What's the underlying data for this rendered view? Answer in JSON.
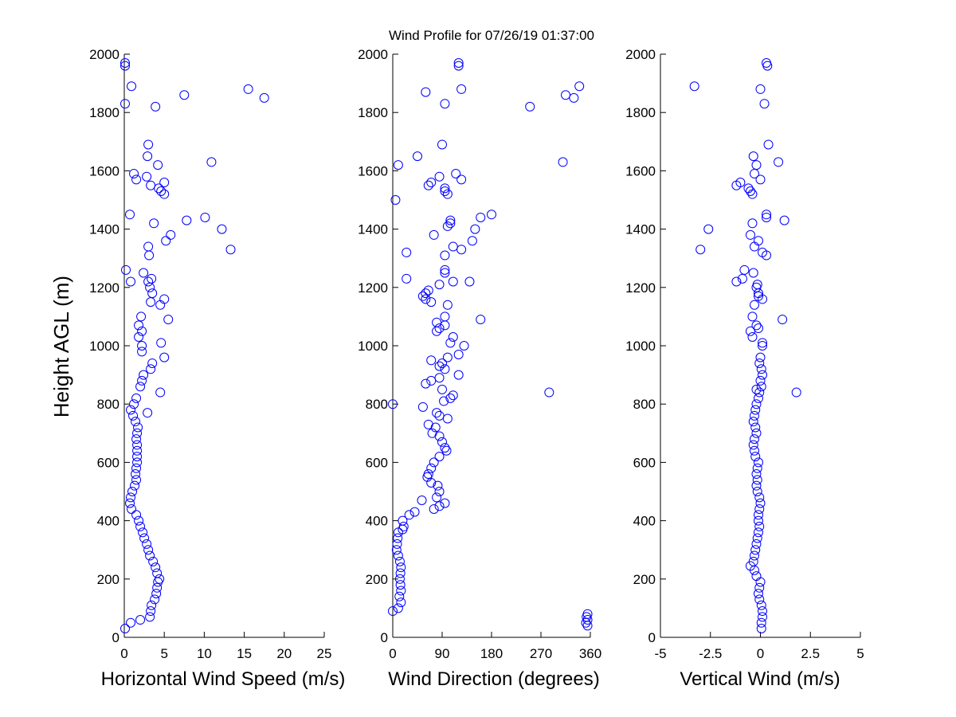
{
  "title": "Wind Profile for  07/26/19 01:37:00",
  "colors": {
    "marker": "#0000ff",
    "axis": "#000000",
    "background": "#ffffff"
  },
  "chart_data": [
    {
      "type": "scatter",
      "xlabel": "Horizontal Wind Speed (m/s)",
      "ylabel": "Height AGL (m)",
      "xlim": [
        0,
        25
      ],
      "ylim": [
        0,
        2000
      ],
      "xticks": [
        0,
        5,
        10,
        15,
        20,
        25
      ],
      "xtick_labels": [
        "0",
        "5",
        "10",
        "15",
        "20",
        "25"
      ],
      "yticks": [
        0,
        200,
        400,
        600,
        800,
        1000,
        1200,
        1400,
        1600,
        1800,
        2000
      ],
      "ytick_labels": [
        "0",
        "200",
        "400",
        "600",
        "800",
        "1000",
        "1200",
        "1400",
        "1600",
        "1800",
        "2000"
      ],
      "grid": false,
      "marker": "open-circle",
      "points": [
        [
          0.1,
          30
        ],
        [
          0.8,
          50
        ],
        [
          2.0,
          60
        ],
        [
          3.2,
          70
        ],
        [
          3.3,
          90
        ],
        [
          3.4,
          110
        ],
        [
          3.8,
          130
        ],
        [
          4.0,
          150
        ],
        [
          4.1,
          170
        ],
        [
          4.2,
          190
        ],
        [
          4.4,
          200
        ],
        [
          4.1,
          220
        ],
        [
          3.9,
          240
        ],
        [
          3.6,
          260
        ],
        [
          3.2,
          280
        ],
        [
          3.0,
          300
        ],
        [
          2.8,
          320
        ],
        [
          2.5,
          340
        ],
        [
          2.3,
          360
        ],
        [
          2.0,
          380
        ],
        [
          1.8,
          400
        ],
        [
          1.5,
          420
        ],
        [
          0.9,
          440
        ],
        [
          0.7,
          460
        ],
        [
          0.8,
          480
        ],
        [
          1.0,
          500
        ],
        [
          1.3,
          520
        ],
        [
          1.5,
          540
        ],
        [
          1.4,
          560
        ],
        [
          1.5,
          580
        ],
        [
          1.6,
          600
        ],
        [
          1.6,
          620
        ],
        [
          1.6,
          640
        ],
        [
          1.6,
          660
        ],
        [
          1.5,
          680
        ],
        [
          1.6,
          700
        ],
        [
          1.7,
          720
        ],
        [
          1.4,
          740
        ],
        [
          1.1,
          760
        ],
        [
          2.9,
          770
        ],
        [
          0.8,
          780
        ],
        [
          1.2,
          800
        ],
        [
          1.5,
          820
        ],
        [
          4.5,
          840
        ],
        [
          2.0,
          860
        ],
        [
          2.2,
          880
        ],
        [
          2.4,
          900
        ],
        [
          3.3,
          920
        ],
        [
          3.5,
          940
        ],
        [
          5.0,
          960
        ],
        [
          2.2,
          980
        ],
        [
          2.2,
          1000
        ],
        [
          4.6,
          1010
        ],
        [
          1.8,
          1030
        ],
        [
          2.2,
          1050
        ],
        [
          1.8,
          1070
        ],
        [
          5.5,
          1090
        ],
        [
          2.1,
          1100
        ],
        [
          4.5,
          1140
        ],
        [
          3.3,
          1150
        ],
        [
          5.0,
          1160
        ],
        [
          3.5,
          1180
        ],
        [
          3.2,
          1200
        ],
        [
          3.0,
          1220
        ],
        [
          0.8,
          1220
        ],
        [
          3.4,
          1230
        ],
        [
          2.4,
          1250
        ],
        [
          0.2,
          1260
        ],
        [
          3.1,
          1310
        ],
        [
          13.3,
          1330
        ],
        [
          3.0,
          1340
        ],
        [
          5.2,
          1360
        ],
        [
          5.8,
          1380
        ],
        [
          12.2,
          1400
        ],
        [
          3.7,
          1420
        ],
        [
          7.8,
          1430
        ],
        [
          10.1,
          1440
        ],
        [
          0.7,
          1450
        ],
        [
          5.0,
          1520
        ],
        [
          4.6,
          1530
        ],
        [
          4.3,
          1540
        ],
        [
          3.3,
          1550
        ],
        [
          5.0,
          1560
        ],
        [
          1.5,
          1570
        ],
        [
          2.8,
          1580
        ],
        [
          1.2,
          1590
        ],
        [
          4.2,
          1620
        ],
        [
          10.9,
          1630
        ],
        [
          2.9,
          1650
        ],
        [
          3.0,
          1690
        ],
        [
          3.9,
          1820
        ],
        [
          0.1,
          1830
        ],
        [
          17.5,
          1850
        ],
        [
          7.5,
          1860
        ],
        [
          15.5,
          1880
        ],
        [
          0.9,
          1890
        ],
        [
          0.1,
          1960
        ],
        [
          0.1,
          1970
        ]
      ]
    },
    {
      "type": "scatter",
      "xlabel": "Wind Direction (degrees)",
      "ylabel": "",
      "xlim": [
        0,
        360
      ],
      "ylim": [
        0,
        2000
      ],
      "xticks": [
        0,
        90,
        180,
        270,
        360
      ],
      "xtick_labels": [
        "0",
        "90",
        "180",
        "270",
        "360"
      ],
      "yticks": [
        0,
        200,
        400,
        600,
        800,
        1000,
        1200,
        1400,
        1600,
        1800,
        2000
      ],
      "ytick_labels": [
        "0",
        "200",
        "400",
        "600",
        "800",
        "1000",
        "1200",
        "1400",
        "1600",
        "1800",
        "2000"
      ],
      "grid": false,
      "marker": "open-circle",
      "points": [
        [
          0,
          90
        ],
        [
          10,
          100
        ],
        [
          15,
          120
        ],
        [
          12,
          140
        ],
        [
          15,
          160
        ],
        [
          14,
          180
        ],
        [
          13,
          200
        ],
        [
          14,
          220
        ],
        [
          15,
          240
        ],
        [
          13,
          260
        ],
        [
          10,
          280
        ],
        [
          7,
          300
        ],
        [
          8,
          320
        ],
        [
          9,
          340
        ],
        [
          10,
          360
        ],
        [
          18,
          370
        ],
        [
          20,
          380
        ],
        [
          18,
          400
        ],
        [
          30,
          420
        ],
        [
          40,
          430
        ],
        [
          53,
          470
        ],
        [
          85,
          450
        ],
        [
          95,
          460
        ],
        [
          75,
          440
        ],
        [
          80,
          480
        ],
        [
          85,
          500
        ],
        [
          82,
          520
        ],
        [
          70,
          530
        ],
        [
          63,
          550
        ],
        [
          65,
          560
        ],
        [
          70,
          580
        ],
        [
          75,
          600
        ],
        [
          85,
          620
        ],
        [
          98,
          640
        ],
        [
          95,
          650
        ],
        [
          90,
          670
        ],
        [
          85,
          690
        ],
        [
          72,
          700
        ],
        [
          78,
          720
        ],
        [
          65,
          730
        ],
        [
          85,
          760
        ],
        [
          80,
          770
        ],
        [
          100,
          750
        ],
        [
          55,
          790
        ],
        [
          0,
          800
        ],
        [
          93,
          810
        ],
        [
          105,
          820
        ],
        [
          110,
          830
        ],
        [
          285,
          840
        ],
        [
          90,
          850
        ],
        [
          60,
          870
        ],
        [
          70,
          880
        ],
        [
          85,
          890
        ],
        [
          120,
          900
        ],
        [
          95,
          920
        ],
        [
          85,
          930
        ],
        [
          90,
          940
        ],
        [
          70,
          950
        ],
        [
          100,
          960
        ],
        [
          120,
          970
        ],
        [
          130,
          1000
        ],
        [
          105,
          1010
        ],
        [
          110,
          1030
        ],
        [
          80,
          1050
        ],
        [
          85,
          1060
        ],
        [
          95,
          1070
        ],
        [
          80,
          1080
        ],
        [
          160,
          1090
        ],
        [
          95,
          1100
        ],
        [
          100,
          1140
        ],
        [
          70,
          1150
        ],
        [
          60,
          1160
        ],
        [
          55,
          1170
        ],
        [
          60,
          1180
        ],
        [
          65,
          1190
        ],
        [
          85,
          1210
        ],
        [
          110,
          1220
        ],
        [
          140,
          1220
        ],
        [
          25,
          1230
        ],
        [
          95,
          1250
        ],
        [
          95,
          1260
        ],
        [
          95,
          1310
        ],
        [
          25,
          1320
        ],
        [
          125,
          1330
        ],
        [
          110,
          1340
        ],
        [
          145,
          1360
        ],
        [
          75,
          1380
        ],
        [
          150,
          1400
        ],
        [
          100,
          1410
        ],
        [
          105,
          1420
        ],
        [
          105,
          1430
        ],
        [
          160,
          1440
        ],
        [
          180,
          1450
        ],
        [
          5,
          1500
        ],
        [
          100,
          1520
        ],
        [
          95,
          1530
        ],
        [
          95,
          1540
        ],
        [
          65,
          1550
        ],
        [
          70,
          1560
        ],
        [
          125,
          1570
        ],
        [
          85,
          1580
        ],
        [
          115,
          1590
        ],
        [
          10,
          1620
        ],
        [
          310,
          1630
        ],
        [
          45,
          1650
        ],
        [
          90,
          1690
        ],
        [
          250,
          1820
        ],
        [
          95,
          1830
        ],
        [
          330,
          1850
        ],
        [
          315,
          1860
        ],
        [
          60,
          1870
        ],
        [
          125,
          1880
        ],
        [
          340,
          1890
        ],
        [
          120,
          1960
        ],
        [
          120,
          1970
        ],
        [
          355,
          40
        ],
        [
          352,
          50
        ],
        [
          355,
          60
        ],
        [
          353,
          70
        ],
        [
          355,
          80
        ]
      ]
    },
    {
      "type": "scatter",
      "xlabel": "Vertical Wind (m/s)",
      "ylabel": "",
      "xlim": [
        -5,
        5
      ],
      "ylim": [
        0,
        2000
      ],
      "xticks": [
        -5,
        -2.5,
        0,
        2.5,
        5
      ],
      "xtick_labels": [
        "-5",
        "-2.5",
        "0",
        "2.5",
        "5"
      ],
      "yticks": [
        0,
        200,
        400,
        600,
        800,
        1000,
        1200,
        1400,
        1600,
        1800,
        2000
      ],
      "ytick_labels": [
        "0",
        "200",
        "400",
        "600",
        "800",
        "1000",
        "1200",
        "1400",
        "1600",
        "1800",
        "2000"
      ],
      "grid": false,
      "marker": "open-circle",
      "points": [
        [
          0.05,
          30
        ],
        [
          0.05,
          50
        ],
        [
          0.1,
          70
        ],
        [
          0.1,
          90
        ],
        [
          0.05,
          110
        ],
        [
          -0.05,
          130
        ],
        [
          -0.1,
          150
        ],
        [
          -0.05,
          170
        ],
        [
          0,
          190
        ],
        [
          -0.2,
          210
        ],
        [
          -0.3,
          230
        ],
        [
          -0.5,
          245
        ],
        [
          -0.35,
          260
        ],
        [
          -0.3,
          280
        ],
        [
          -0.25,
          300
        ],
        [
          -0.2,
          320
        ],
        [
          -0.15,
          340
        ],
        [
          -0.1,
          360
        ],
        [
          -0.05,
          380
        ],
        [
          -0.1,
          400
        ],
        [
          -0.1,
          420
        ],
        [
          -0.05,
          440
        ],
        [
          0,
          460
        ],
        [
          -0.05,
          480
        ],
        [
          -0.15,
          500
        ],
        [
          -0.2,
          520
        ],
        [
          -0.15,
          540
        ],
        [
          -0.2,
          560
        ],
        [
          -0.15,
          580
        ],
        [
          -0.1,
          600
        ],
        [
          -0.25,
          620
        ],
        [
          -0.3,
          640
        ],
        [
          -0.35,
          660
        ],
        [
          -0.3,
          680
        ],
        [
          -0.2,
          700
        ],
        [
          -0.25,
          720
        ],
        [
          -0.35,
          740
        ],
        [
          -0.3,
          760
        ],
        [
          -0.25,
          780
        ],
        [
          -0.2,
          800
        ],
        [
          -0.1,
          820
        ],
        [
          -0.05,
          840
        ],
        [
          1.8,
          840
        ],
        [
          -0.2,
          850
        ],
        [
          0.05,
          860
        ],
        [
          0,
          880
        ],
        [
          0.1,
          900
        ],
        [
          0.05,
          920
        ],
        [
          -0.05,
          940
        ],
        [
          0,
          960
        ],
        [
          0.1,
          1000
        ],
        [
          0.1,
          1010
        ],
        [
          -0.4,
          1030
        ],
        [
          -0.5,
          1050
        ],
        [
          -0.1,
          1060
        ],
        [
          -0.2,
          1070
        ],
        [
          -0.4,
          1100
        ],
        [
          1.1,
          1090
        ],
        [
          -0.3,
          1140
        ],
        [
          0.1,
          1160
        ],
        [
          -0.1,
          1170
        ],
        [
          -0.1,
          1180
        ],
        [
          -0.2,
          1200
        ],
        [
          -0.15,
          1210
        ],
        [
          -1.2,
          1220
        ],
        [
          -0.9,
          1230
        ],
        [
          -0.35,
          1250
        ],
        [
          -0.8,
          1260
        ],
        [
          0.3,
          1310
        ],
        [
          0.1,
          1320
        ],
        [
          -3.0,
          1330
        ],
        [
          -0.3,
          1340
        ],
        [
          -0.1,
          1360
        ],
        [
          -0.5,
          1380
        ],
        [
          -2.6,
          1400
        ],
        [
          -0.4,
          1420
        ],
        [
          1.2,
          1430
        ],
        [
          0.3,
          1440
        ],
        [
          0.3,
          1450
        ],
        [
          -0.4,
          1520
        ],
        [
          -0.5,
          1530
        ],
        [
          -0.6,
          1540
        ],
        [
          -1.2,
          1550
        ],
        [
          -1.0,
          1560
        ],
        [
          0,
          1570
        ],
        [
          -0.3,
          1590
        ],
        [
          -0.2,
          1620
        ],
        [
          0.9,
          1630
        ],
        [
          -0.35,
          1650
        ],
        [
          0.4,
          1690
        ],
        [
          0.2,
          1830
        ],
        [
          0,
          1880
        ],
        [
          -3.3,
          1890
        ],
        [
          0.35,
          1960
        ],
        [
          0.3,
          1970
        ]
      ]
    }
  ]
}
